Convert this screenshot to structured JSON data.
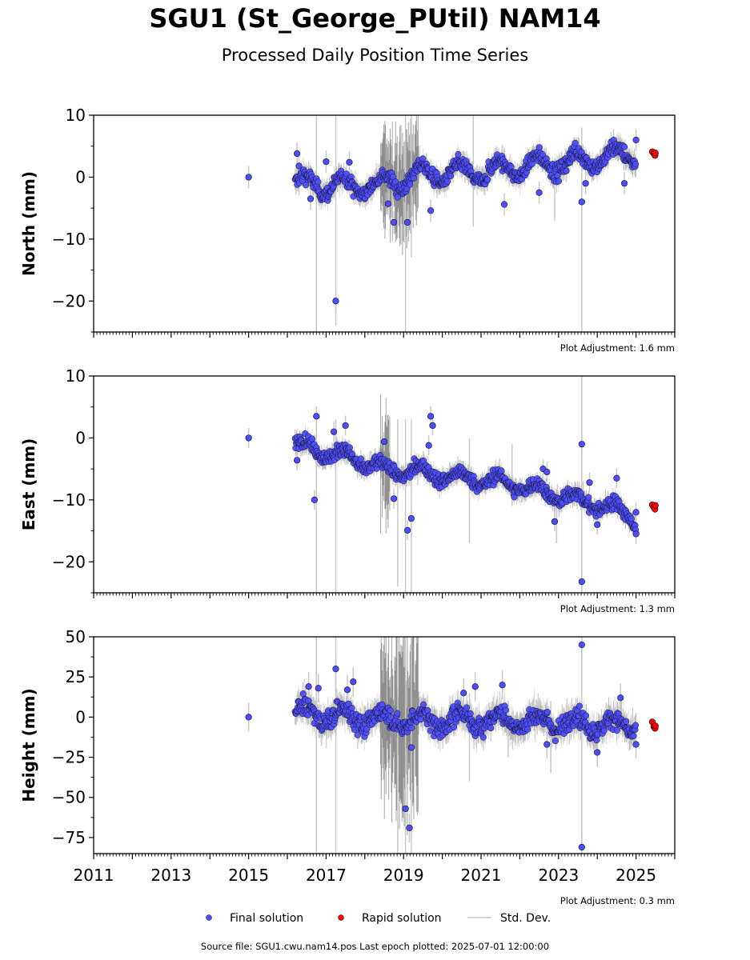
{
  "title": "SGU1 (St_George_PUtil) NAM14",
  "subtitle": "Processed Daily Position Time Series",
  "source_note": "Source file: SGU1.cwu.nam14.pos  Last epoch plotted: 2025-07-01 12:00:00",
  "colors": {
    "final": "#4d4dff",
    "rapid": "#ff0000",
    "stddev": "#c8c8c8",
    "edge": "#000000"
  },
  "legend": {
    "final": "Final solution",
    "rapid": "Rapid solution",
    "stddev": "Std. Dev."
  },
  "chart_data": [
    {
      "type": "scatter",
      "ylabel": "North (mm)",
      "ylim": [
        -25,
        10
      ],
      "yticks": [
        10,
        0,
        -10,
        -20
      ],
      "ytick_labels": [
        "10",
        "0",
        "−10",
        "−20"
      ],
      "adjustment_note": "Plot Adjustment: 1.6 mm",
      "xlim": [
        2011.0,
        2026.0
      ],
      "xticks": [
        2011,
        2013,
        2015,
        2017,
        2019,
        2021,
        2023,
        2025
      ],
      "xtick_labels": [],
      "trend": [
        [
          2016.2,
          -1.0
        ],
        [
          2017.6,
          -1.5
        ],
        [
          2018.5,
          -1.0
        ],
        [
          2019.5,
          0.5
        ],
        [
          2021.0,
          0.8
        ],
        [
          2022.5,
          2.0
        ],
        [
          2023.7,
          2.8
        ],
        [
          2025.0,
          4.0
        ]
      ],
      "seasonal_amplitude": 1.5,
      "noise": 0.9,
      "final_points": [
        [
          2015.0,
          0.0
        ],
        [
          2016.25,
          3.8
        ],
        [
          2016.3,
          1.8
        ],
        [
          2017.25,
          -20.0
        ],
        [
          2016.6,
          -3.5
        ],
        [
          2017.0,
          2.5
        ],
        [
          2017.6,
          2.4
        ],
        [
          2018.6,
          -4.3
        ],
        [
          2018.75,
          -7.3
        ],
        [
          2019.1,
          -7.3
        ],
        [
          2019.7,
          -5.4
        ],
        [
          2021.6,
          -4.4
        ],
        [
          2022.5,
          -2.5
        ],
        [
          2023.2,
          1.0
        ],
        [
          2023.6,
          -4.0
        ],
        [
          2023.7,
          -1.0
        ],
        [
          2024.7,
          -1.0
        ],
        [
          2025.0,
          6.0
        ]
      ],
      "rapid_points": [
        [
          2025.42,
          4.1
        ],
        [
          2025.46,
          3.8
        ],
        [
          2025.49,
          3.5
        ],
        [
          2025.5,
          3.9
        ]
      ],
      "outlier_bars": [
        [
          2016.75,
          -25,
          10
        ],
        [
          2017.25,
          -24,
          10
        ],
        [
          2019.05,
          -25,
          10
        ],
        [
          2019.2,
          -13,
          10
        ],
        [
          2020.8,
          -8,
          10
        ],
        [
          2022.9,
          -7,
          3
        ],
        [
          2023.6,
          -25,
          8
        ]
      ],
      "volatile_range": [
        2018.4,
        2019.4
      ],
      "volatile_extent": [
        -11,
        9
      ]
    },
    {
      "type": "scatter",
      "ylabel": "East (mm)",
      "ylim": [
        -25,
        10
      ],
      "yticks": [
        10,
        0,
        -10,
        -20
      ],
      "ytick_labels": [
        "10",
        "0",
        "−10",
        "−20"
      ],
      "adjustment_note": "Plot Adjustment: 1.3 mm",
      "xlim": [
        2011.0,
        2026.0
      ],
      "xticks": [
        2011,
        2013,
        2015,
        2017,
        2019,
        2021,
        2023,
        2025
      ],
      "xtick_labels": [],
      "trend": [
        [
          2016.2,
          -1.0
        ],
        [
          2017.5,
          -3.0
        ],
        [
          2018.5,
          -5.0
        ],
        [
          2019.5,
          -5.5
        ],
        [
          2020.5,
          -6.5
        ],
        [
          2021.5,
          -7.0
        ],
        [
          2022.5,
          -8.5
        ],
        [
          2023.5,
          -10.0
        ],
        [
          2024.5,
          -11.5
        ],
        [
          2025.0,
          -13.0
        ]
      ],
      "seasonal_amplitude": 1.0,
      "noise": 0.8,
      "final_points": [
        [
          2015.0,
          0.0
        ],
        [
          2016.25,
          -3.6
        ],
        [
          2016.75,
          3.5
        ],
        [
          2016.7,
          -10.0
        ],
        [
          2017.2,
          1.0
        ],
        [
          2017.5,
          2.0
        ],
        [
          2018.5,
          -0.6
        ],
        [
          2018.75,
          -9.8
        ],
        [
          2019.1,
          -14.9
        ],
        [
          2019.2,
          -13.0
        ],
        [
          2019.7,
          3.5
        ],
        [
          2019.75,
          2.0
        ],
        [
          2019.65,
          -1.2
        ],
        [
          2023.6,
          -1.0
        ],
        [
          2023.6,
          -23.2
        ],
        [
          2023.8,
          -7.2
        ],
        [
          2024.0,
          -14.0
        ],
        [
          2024.5,
          -6.5
        ],
        [
          2022.6,
          -5.0
        ],
        [
          2022.7,
          -5.5
        ],
        [
          2022.9,
          -13.5
        ],
        [
          2025.0,
          -15.5
        ],
        [
          2025.0,
          -12.0
        ]
      ],
      "rapid_points": [
        [
          2025.42,
          -10.8
        ],
        [
          2025.46,
          -11.2
        ],
        [
          2025.49,
          -11.5
        ],
        [
          2025.5,
          -10.9
        ]
      ],
      "outlier_bars": [
        [
          2016.75,
          -25,
          2
        ],
        [
          2017.25,
          -25,
          3
        ],
        [
          2018.85,
          -24,
          3
        ],
        [
          2019.05,
          -25,
          3
        ],
        [
          2019.2,
          -25,
          3
        ],
        [
          2020.7,
          -17,
          0
        ],
        [
          2021.8,
          -11,
          -1
        ],
        [
          2022.95,
          -17,
          -9
        ],
        [
          2023.6,
          -25,
          10
        ]
      ],
      "volatile_range": [
        2018.4,
        2018.65
      ],
      "volatile_extent": [
        -15,
        8
      ]
    },
    {
      "type": "scatter",
      "ylabel": "Height (mm)",
      "ylim": [
        -85,
        50
      ],
      "yticks": [
        50,
        25,
        0,
        -25,
        -50,
        -75
      ],
      "ytick_labels": [
        "50",
        "25",
        "0",
        "−25",
        "−50",
        "−75"
      ],
      "adjustment_note": "Plot Adjustment: 0.3 mm",
      "xlim": [
        2011.0,
        2026.0
      ],
      "xticks": [
        2011,
        2013,
        2015,
        2017,
        2019,
        2021,
        2023,
        2025
      ],
      "xtick_labels": [
        "2011",
        "2013",
        "2015",
        "2017",
        "2019",
        "2021",
        "2023",
        "2025"
      ],
      "trend": [
        [
          2016.2,
          3.0
        ],
        [
          2017.5,
          0.0
        ],
        [
          2019.0,
          -2.0
        ],
        [
          2021.0,
          -2.0
        ],
        [
          2023.0,
          -3.0
        ],
        [
          2025.0,
          -6.0
        ]
      ],
      "seasonal_amplitude": 5.0,
      "noise": 4.5,
      "final_points": [
        [
          2015.0,
          0.0
        ],
        [
          2016.55,
          19.0
        ],
        [
          2016.8,
          18.0
        ],
        [
          2017.25,
          30.0
        ],
        [
          2017.55,
          17.0
        ],
        [
          2017.7,
          22.0
        ],
        [
          2019.05,
          -57.0
        ],
        [
          2019.15,
          -69.0
        ],
        [
          2019.2,
          -19.0
        ],
        [
          2020.55,
          15.0
        ],
        [
          2020.85,
          19.0
        ],
        [
          2021.55,
          20.0
        ],
        [
          2022.7,
          -17.0
        ],
        [
          2023.6,
          45.0
        ],
        [
          2023.6,
          -81.0
        ],
        [
          2024.0,
          -22.0
        ],
        [
          2024.6,
          12.0
        ],
        [
          2025.0,
          -17.0
        ]
      ],
      "rapid_points": [
        [
          2025.42,
          -3.0
        ],
        [
          2025.46,
          -6.0
        ],
        [
          2025.49,
          -7.0
        ],
        [
          2025.5,
          -5.5
        ]
      ],
      "outlier_bars": [
        [
          2016.75,
          -85,
          50
        ],
        [
          2017.25,
          -85,
          50
        ],
        [
          2018.85,
          -85,
          50
        ],
        [
          2019.05,
          -85,
          50
        ],
        [
          2019.2,
          -85,
          50
        ],
        [
          2020.7,
          -40,
          15
        ],
        [
          2021.7,
          -25,
          10
        ],
        [
          2022.8,
          -35,
          10
        ],
        [
          2023.6,
          -85,
          50
        ]
      ],
      "volatile_range": [
        2018.4,
        2019.4
      ],
      "volatile_extent": [
        -80,
        50
      ]
    }
  ]
}
